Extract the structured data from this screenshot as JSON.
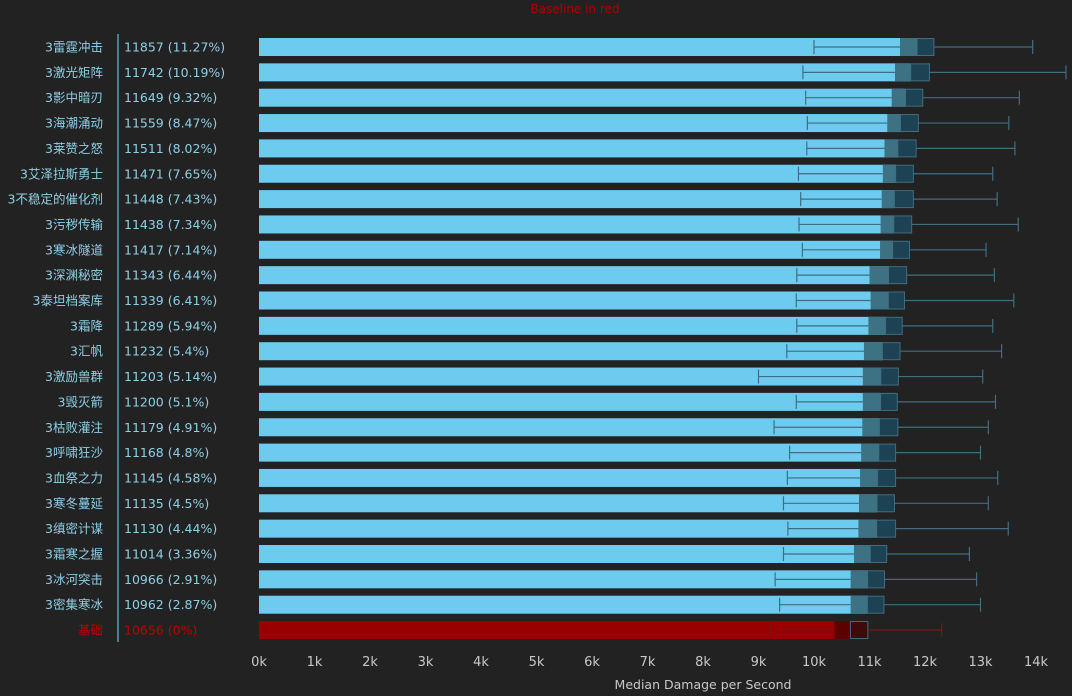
{
  "chart_data": {
    "type": "box-bar",
    "title": "Baseline in red",
    "xlabel": "Median Damage per Second",
    "xlim": [
      0,
      14000
    ],
    "x_ticks": [
      {
        "value": 0,
        "label": "0k"
      },
      {
        "value": 1000,
        "label": "1k"
      },
      {
        "value": 2000,
        "label": "2k"
      },
      {
        "value": 3000,
        "label": "3k"
      },
      {
        "value": 4000,
        "label": "4k"
      },
      {
        "value": 5000,
        "label": "5k"
      },
      {
        "value": 6000,
        "label": "6k"
      },
      {
        "value": 7000,
        "label": "7k"
      },
      {
        "value": 8000,
        "label": "8k"
      },
      {
        "value": 9000,
        "label": "9k"
      },
      {
        "value": 10000,
        "label": "10k"
      },
      {
        "value": 11000,
        "label": "11k"
      },
      {
        "value": 12000,
        "label": "12k"
      },
      {
        "value": 13000,
        "label": "13k"
      },
      {
        "value": 14000,
        "label": "14k"
      }
    ],
    "colors": {
      "bar": "#6ecbf0",
      "box_lower": "#3d7184",
      "box_upper": "#1c4253",
      "whisker": "#3e6e80",
      "baseline_bar": "#9b0000",
      "baseline_box_lower": "#5c0000",
      "baseline_box_upper": "#3e0a0a",
      "baseline_whisker": "#7a1515",
      "baseline_text": "#c00000",
      "label": "#8ecfe6"
    },
    "rows": [
      {
        "name": "3雷霆冲击",
        "label": "11857 (11.27%)",
        "value": 11857,
        "min": 10000,
        "q1": 11550,
        "q3": 12160,
        "max": 13940,
        "baseline": false
      },
      {
        "name": "3激光矩阵",
        "label": "11742 (10.19%)",
        "value": 11742,
        "min": 9800,
        "q1": 11460,
        "q3": 12080,
        "max": 14540,
        "baseline": false
      },
      {
        "name": "3影中暗刃",
        "label": "11649 (9.32%)",
        "value": 11649,
        "min": 9850,
        "q1": 11400,
        "q3": 11960,
        "max": 13700,
        "baseline": false
      },
      {
        "name": "3海潮涌动",
        "label": "11559 (8.47%)",
        "value": 11559,
        "min": 9880,
        "q1": 11320,
        "q3": 11880,
        "max": 13510,
        "baseline": false
      },
      {
        "name": "3莱赞之怒",
        "label": "11511 (8.02%)",
        "value": 11511,
        "min": 9870,
        "q1": 11270,
        "q3": 11840,
        "max": 13620,
        "baseline": false
      },
      {
        "name": "3艾泽拉斯勇士",
        "label": "11471 (7.65%)",
        "value": 11471,
        "min": 9720,
        "q1": 11240,
        "q3": 11790,
        "max": 13220,
        "baseline": false
      },
      {
        "name": "3不稳定的催化剂",
        "label": "11448 (7.43%)",
        "value": 11448,
        "min": 9760,
        "q1": 11220,
        "q3": 11790,
        "max": 13300,
        "baseline": false
      },
      {
        "name": "3污秽传输",
        "label": "11438 (7.34%)",
        "value": 11438,
        "min": 9730,
        "q1": 11200,
        "q3": 11760,
        "max": 13680,
        "baseline": false
      },
      {
        "name": "3寒冰隧道",
        "label": "11417 (7.14%)",
        "value": 11417,
        "min": 9790,
        "q1": 11190,
        "q3": 11720,
        "max": 13100,
        "baseline": false
      },
      {
        "name": "3深渊秘密",
        "label": "11343 (6.44%)",
        "value": 11343,
        "min": 9690,
        "q1": 11000,
        "q3": 11670,
        "max": 13250,
        "baseline": false
      },
      {
        "name": "3泰坦档案库",
        "label": "11339 (6.41%)",
        "value": 11339,
        "min": 9680,
        "q1": 11020,
        "q3": 11630,
        "max": 13600,
        "baseline": false
      },
      {
        "name": "3霜降",
        "label": "11289 (5.94%)",
        "value": 11289,
        "min": 9690,
        "q1": 10980,
        "q3": 11590,
        "max": 13220,
        "baseline": false
      },
      {
        "name": "3汇帆",
        "label": "11232 (5.4%)",
        "value": 11232,
        "min": 9510,
        "q1": 10900,
        "q3": 11550,
        "max": 13380,
        "baseline": false
      },
      {
        "name": "3激励兽群",
        "label": "11203 (5.14%)",
        "value": 11203,
        "min": 9000,
        "q1": 10880,
        "q3": 11520,
        "max": 13040,
        "baseline": false
      },
      {
        "name": "3毁灭箭",
        "label": "11200 (5.1%)",
        "value": 11200,
        "min": 9680,
        "q1": 10880,
        "q3": 11500,
        "max": 13270,
        "baseline": false
      },
      {
        "name": "3枯败灌注",
        "label": "11179 (4.91%)",
        "value": 11179,
        "min": 9280,
        "q1": 10870,
        "q3": 11510,
        "max": 13140,
        "baseline": false
      },
      {
        "name": "3呼啸狂沙",
        "label": "11168 (4.8%)",
        "value": 11168,
        "min": 9560,
        "q1": 10850,
        "q3": 11470,
        "max": 13000,
        "baseline": false
      },
      {
        "name": "3血祭之力",
        "label": "11145 (4.58%)",
        "value": 11145,
        "min": 9520,
        "q1": 10830,
        "q3": 11470,
        "max": 13310,
        "baseline": false
      },
      {
        "name": "3寒冬蔓延",
        "label": "11135 (4.5%)",
        "value": 11135,
        "min": 9450,
        "q1": 10810,
        "q3": 11450,
        "max": 13140,
        "baseline": false
      },
      {
        "name": "3缜密计谋",
        "label": "11130 (4.44%)",
        "value": 11130,
        "min": 9530,
        "q1": 10800,
        "q3": 11470,
        "max": 13500,
        "baseline": false
      },
      {
        "name": "3霜寒之握",
        "label": "11014 (3.36%)",
        "value": 11014,
        "min": 9450,
        "q1": 10720,
        "q3": 11310,
        "max": 12800,
        "baseline": false
      },
      {
        "name": "3冰河突击",
        "label": "10966 (2.91%)",
        "value": 10966,
        "min": 9300,
        "q1": 10660,
        "q3": 11270,
        "max": 12930,
        "baseline": false
      },
      {
        "name": "3密集寒冰",
        "label": "10962 (2.87%)",
        "value": 10962,
        "min": 9380,
        "q1": 10660,
        "q3": 11260,
        "max": 13000,
        "baseline": false
      },
      {
        "name": "基础",
        "label": "10656 (0%)",
        "value": 10656,
        "min": 9220,
        "q1": 10370,
        "q3": 10970,
        "max": 12300,
        "baseline": true
      }
    ]
  }
}
